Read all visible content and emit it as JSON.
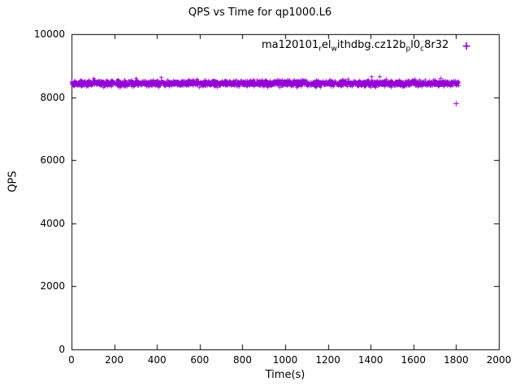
{
  "title": "QPS vs Time for qp1000.L6",
  "chart_data": {
    "type": "scatter",
    "title": "QPS vs Time for qp1000.L6",
    "xlabel": "Time(s)",
    "ylabel": "QPS",
    "xlim": [
      0,
      2000
    ],
    "ylim": [
      0,
      10000
    ],
    "xticks": [
      0,
      200,
      400,
      600,
      800,
      1000,
      1200,
      1400,
      1600,
      1800,
      2000
    ],
    "yticks": [
      0,
      2000,
      4000,
      6000,
      8000,
      10000
    ],
    "grid": false,
    "border": true,
    "legend": {
      "position": "top-right-inside",
      "entries": [
        {
          "label_raw": "ma120101_rel_withdbg.cz12b_pl0_c8r32",
          "marker": "+",
          "color": "#9400d3"
        }
      ]
    },
    "series": [
      {
        "name": "ma120101_rel_withdbg.cz12b_pl0_c8r32",
        "marker": "plus",
        "color": "#9400d3",
        "band": {
          "x_start": 0,
          "x_end": 1810,
          "points": 1800,
          "y_mean": 8450,
          "y_jitter": 85,
          "spike_chance": 0.02,
          "spike_extra": 130,
          "seed": 42
        },
        "outliers": [
          [
            1800,
            7800
          ]
        ],
        "sample_points": [
          [
            0,
            8420
          ],
          [
            100,
            8470
          ],
          [
            200,
            8445
          ],
          [
            300,
            8490
          ],
          [
            400,
            8430
          ],
          [
            500,
            8460
          ],
          [
            600,
            8440
          ],
          [
            700,
            8480
          ],
          [
            800,
            8455
          ],
          [
            900,
            8430
          ],
          [
            1000,
            8470
          ],
          [
            1100,
            8450
          ],
          [
            1200,
            8485
          ],
          [
            1300,
            8440
          ],
          [
            1400,
            8465
          ],
          [
            1500,
            8450
          ],
          [
            1600,
            8475
          ],
          [
            1700,
            8435
          ],
          [
            1800,
            8460
          ]
        ]
      }
    ]
  }
}
